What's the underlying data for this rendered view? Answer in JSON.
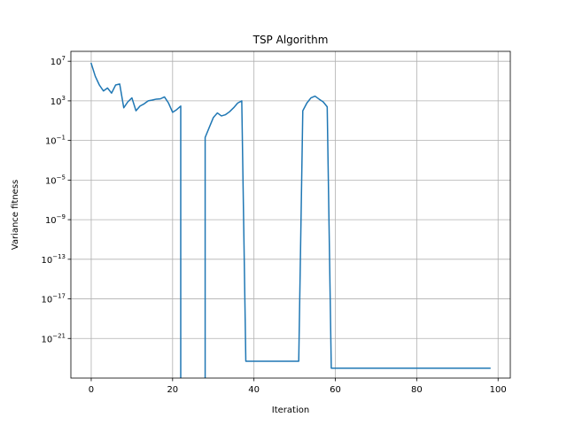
{
  "chart_data": {
    "type": "line",
    "title": "TSP Algorithm",
    "xlabel": "Iteration",
    "ylabel": "Variance fitness",
    "xlim": [
      -5,
      103
    ],
    "ylim": [
      1e-25,
      100000000.0
    ],
    "yscale": "log",
    "grid": true,
    "x_ticks": [
      0,
      20,
      40,
      60,
      80,
      100
    ],
    "y_ticks": [
      10000000.0,
      1000.0,
      0.1,
      1e-05,
      1e-09,
      1e-13,
      1e-17,
      1e-21
    ],
    "y_tick_labels": [
      {
        "base": "10",
        "exp": "7"
      },
      {
        "base": "10",
        "exp": "3"
      },
      {
        "base": "10",
        "exp": "−1"
      },
      {
        "base": "10",
        "exp": "−5"
      },
      {
        "base": "10",
        "exp": "−9"
      },
      {
        "base": "10",
        "exp": "−13"
      },
      {
        "base": "10",
        "exp": "−17"
      },
      {
        "base": "10",
        "exp": "−21"
      }
    ],
    "series": [
      {
        "color": "#1f77b4",
        "points": [
          [
            0,
            6000000.0
          ],
          [
            1,
            300000.0
          ],
          [
            2,
            40000.0
          ],
          [
            3,
            10000.0
          ],
          [
            4,
            20000.0
          ],
          [
            5,
            6000.0
          ],
          [
            6,
            40000.0
          ],
          [
            7,
            50000.0
          ],
          [
            8,
            200
          ],
          [
            9,
            800
          ],
          [
            10,
            2000
          ],
          [
            11,
            100
          ],
          [
            12,
            300
          ],
          [
            13,
            500
          ],
          [
            14,
            1000
          ],
          [
            15,
            1200
          ],
          [
            16,
            1500
          ],
          [
            17,
            1600
          ],
          [
            18,
            2500
          ],
          [
            19,
            600
          ],
          [
            20,
            70
          ],
          [
            21,
            130
          ],
          [
            22,
            300
          ],
          [
            22,
            0
          ],
          [
            28,
            0
          ],
          [
            28,
            0.2
          ],
          [
            29,
            2
          ],
          [
            30,
            20
          ],
          [
            31,
            60
          ],
          [
            32,
            30
          ],
          [
            33,
            40
          ],
          [
            34,
            80
          ],
          [
            35,
            200
          ],
          [
            36,
            600
          ],
          [
            37,
            1000
          ],
          [
            38,
            5e-24
          ],
          [
            40,
            5e-24
          ],
          [
            45,
            5e-24
          ],
          [
            50,
            5e-24
          ],
          [
            51,
            5e-24
          ],
          [
            52,
            100
          ],
          [
            53,
            600
          ],
          [
            54,
            2000
          ],
          [
            55,
            3000
          ],
          [
            56,
            1500
          ],
          [
            57,
            800
          ],
          [
            58,
            250
          ],
          [
            59,
            1e-24
          ],
          [
            60,
            1e-24
          ],
          [
            70,
            1e-24
          ],
          [
            80,
            1e-24
          ],
          [
            90,
            1e-24
          ],
          [
            98,
            1e-24
          ]
        ]
      }
    ]
  }
}
